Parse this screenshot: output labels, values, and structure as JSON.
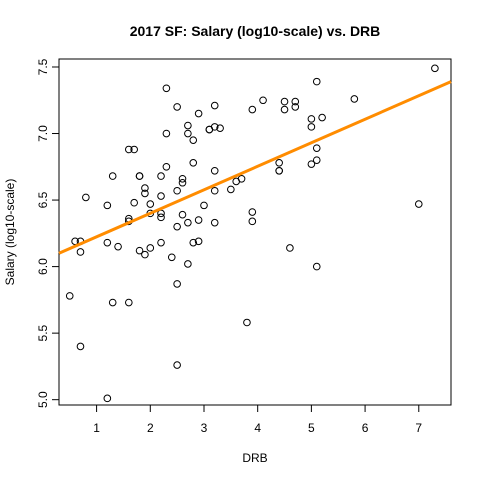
{
  "chart_data": {
    "type": "scatter",
    "title": "2017 SF: Salary (log10-scale) vs. DRB",
    "xlabel": "DRB",
    "ylabel": "Salary (log10-scale)",
    "xlim": [
      0.3,
      7.6
    ],
    "ylim": [
      4.96,
      7.56
    ],
    "xticks": [
      1,
      2,
      3,
      4,
      5,
      6,
      7
    ],
    "yticks": [
      5.0,
      5.5,
      6.0,
      6.5,
      7.0,
      7.5
    ],
    "ytick_labels": [
      "5.0",
      "5.5",
      "6.0",
      "6.5",
      "7.0",
      "7.5"
    ],
    "grid": false,
    "point_color": "#000000",
    "trend_color": "#ff8c00",
    "trend_line": {
      "x": [
        0.3,
        7.6
      ],
      "y": [
        6.1,
        7.39
      ]
    },
    "points": [
      {
        "x": 0.5,
        "y": 5.78
      },
      {
        "x": 0.6,
        "y": 6.19
      },
      {
        "x": 0.7,
        "y": 6.19
      },
      {
        "x": 0.7,
        "y": 6.11
      },
      {
        "x": 0.7,
        "y": 5.4
      },
      {
        "x": 0.8,
        "y": 6.52
      },
      {
        "x": 1.2,
        "y": 6.46
      },
      {
        "x": 1.2,
        "y": 6.18
      },
      {
        "x": 1.2,
        "y": 5.01
      },
      {
        "x": 1.3,
        "y": 6.68
      },
      {
        "x": 1.3,
        "y": 5.73
      },
      {
        "x": 1.4,
        "y": 6.15
      },
      {
        "x": 1.6,
        "y": 6.88
      },
      {
        "x": 1.6,
        "y": 6.36
      },
      {
        "x": 1.6,
        "y": 6.34
      },
      {
        "x": 1.6,
        "y": 5.73
      },
      {
        "x": 1.7,
        "y": 6.88
      },
      {
        "x": 1.7,
        "y": 6.48
      },
      {
        "x": 1.8,
        "y": 6.68
      },
      {
        "x": 1.8,
        "y": 6.68
      },
      {
        "x": 1.8,
        "y": 6.12
      },
      {
        "x": 1.9,
        "y": 6.59
      },
      {
        "x": 1.9,
        "y": 6.55
      },
      {
        "x": 1.9,
        "y": 6.09
      },
      {
        "x": 2.0,
        "y": 6.47
      },
      {
        "x": 2.0,
        "y": 6.4
      },
      {
        "x": 2.0,
        "y": 6.14
      },
      {
        "x": 2.2,
        "y": 6.68
      },
      {
        "x": 2.2,
        "y": 6.53
      },
      {
        "x": 2.2,
        "y": 6.4
      },
      {
        "x": 2.2,
        "y": 6.37
      },
      {
        "x": 2.2,
        "y": 6.18
      },
      {
        "x": 2.3,
        "y": 7.34
      },
      {
        "x": 2.3,
        "y": 7.0
      },
      {
        "x": 2.3,
        "y": 6.75
      },
      {
        "x": 2.4,
        "y": 6.07
      },
      {
        "x": 2.5,
        "y": 7.2
      },
      {
        "x": 2.5,
        "y": 6.57
      },
      {
        "x": 2.5,
        "y": 6.3
      },
      {
        "x": 2.5,
        "y": 5.87
      },
      {
        "x": 2.5,
        "y": 5.26
      },
      {
        "x": 2.6,
        "y": 6.66
      },
      {
        "x": 2.6,
        "y": 6.63
      },
      {
        "x": 2.6,
        "y": 6.39
      },
      {
        "x": 2.7,
        "y": 7.06
      },
      {
        "x": 2.7,
        "y": 7.0
      },
      {
        "x": 2.7,
        "y": 6.33
      },
      {
        "x": 2.7,
        "y": 6.02
      },
      {
        "x": 2.8,
        "y": 6.95
      },
      {
        "x": 2.8,
        "y": 6.78
      },
      {
        "x": 2.8,
        "y": 6.18
      },
      {
        "x": 2.9,
        "y": 7.15
      },
      {
        "x": 2.9,
        "y": 6.35
      },
      {
        "x": 2.9,
        "y": 6.19
      },
      {
        "x": 3.0,
        "y": 6.46
      },
      {
        "x": 3.1,
        "y": 7.03
      },
      {
        "x": 3.1,
        "y": 7.03
      },
      {
        "x": 3.2,
        "y": 7.21
      },
      {
        "x": 3.2,
        "y": 7.05
      },
      {
        "x": 3.2,
        "y": 6.72
      },
      {
        "x": 3.2,
        "y": 6.57
      },
      {
        "x": 3.2,
        "y": 6.33
      },
      {
        "x": 3.3,
        "y": 7.04
      },
      {
        "x": 3.5,
        "y": 6.58
      },
      {
        "x": 3.6,
        "y": 6.64
      },
      {
        "x": 3.7,
        "y": 6.66
      },
      {
        "x": 3.8,
        "y": 5.58
      },
      {
        "x": 3.9,
        "y": 7.18
      },
      {
        "x": 3.9,
        "y": 6.41
      },
      {
        "x": 3.9,
        "y": 6.34
      },
      {
        "x": 4.1,
        "y": 7.25
      },
      {
        "x": 4.4,
        "y": 6.78
      },
      {
        "x": 4.4,
        "y": 6.72
      },
      {
        "x": 4.4,
        "y": 6.72
      },
      {
        "x": 4.5,
        "y": 7.24
      },
      {
        "x": 4.5,
        "y": 7.18
      },
      {
        "x": 4.6,
        "y": 6.14
      },
      {
        "x": 4.7,
        "y": 7.24
      },
      {
        "x": 4.7,
        "y": 7.2
      },
      {
        "x": 5.0,
        "y": 7.11
      },
      {
        "x": 5.0,
        "y": 7.05
      },
      {
        "x": 5.0,
        "y": 6.77
      },
      {
        "x": 5.1,
        "y": 7.39
      },
      {
        "x": 5.1,
        "y": 6.89
      },
      {
        "x": 5.1,
        "y": 6.8
      },
      {
        "x": 5.1,
        "y": 6.0
      },
      {
        "x": 5.2,
        "y": 7.12
      },
      {
        "x": 5.8,
        "y": 7.26
      },
      {
        "x": 7.0,
        "y": 6.47
      },
      {
        "x": 7.3,
        "y": 7.49
      }
    ]
  }
}
